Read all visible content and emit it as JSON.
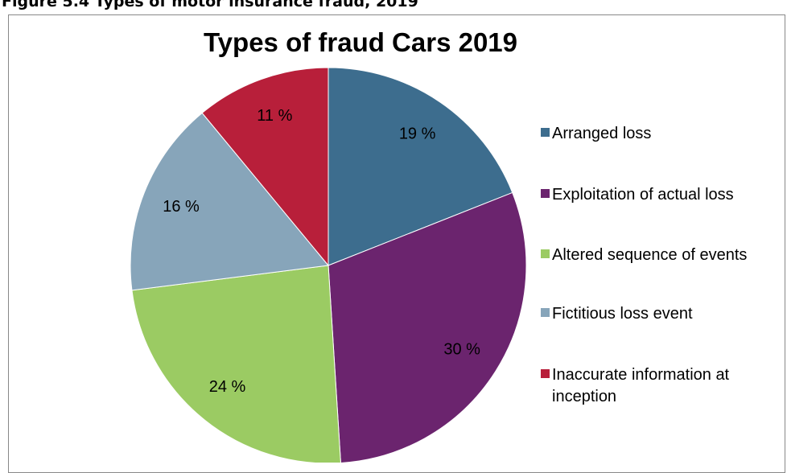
{
  "figure_caption": "Figure 5.4    Types of motor insurance fraud, 2019",
  "chart_data": {
    "type": "pie",
    "title": "Types of fraud Cars 2019",
    "categories": [
      "Arranged loss",
      "Exploitation of actual loss",
      "Altered sequence of events",
      "Fictitious loss event",
      "Inaccurate information at inception"
    ],
    "values": [
      19,
      30,
      24,
      16,
      11
    ],
    "value_labels": [
      "19 %",
      "30 %",
      "24 %",
      "16 %",
      "11 %"
    ],
    "colors": [
      "#3d6d8e",
      "#6b246e",
      "#9bcb63",
      "#87a5ba",
      "#b81f3a"
    ],
    "legend": "right"
  }
}
